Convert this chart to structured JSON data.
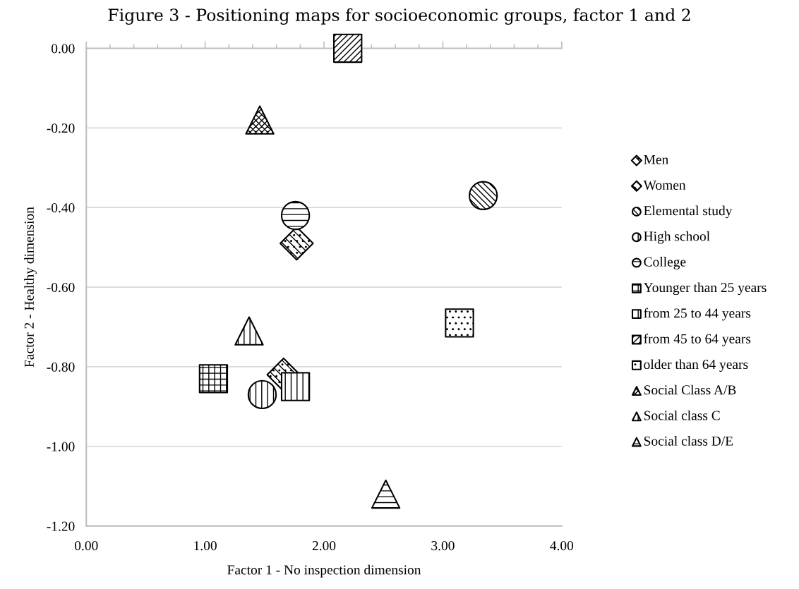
{
  "chart_data": {
    "type": "scatter",
    "title": "Figure 3 - Positioning maps for socioeconomic groups, factor 1 and 2",
    "xlabel": "Factor 1 - No inspection dimension",
    "ylabel": "Factor 2 - Healthy dimension",
    "xlim": [
      0,
      4
    ],
    "xticks": [
      {
        "value": 0,
        "label": "0.00"
      },
      {
        "value": 1,
        "label": "1.00"
      },
      {
        "value": 2,
        "label": "2.00"
      },
      {
        "value": 3,
        "label": "3.00"
      },
      {
        "value": 4,
        "label": "4.00"
      }
    ],
    "ylim": [
      -1.2,
      0
    ],
    "yticks": [
      {
        "value": -1.2,
        "label": "-1.20"
      },
      {
        "value": -1.0,
        "label": "-1.00"
      },
      {
        "value": -0.8,
        "label": "-0.80"
      },
      {
        "value": -0.6,
        "label": "-0.60"
      },
      {
        "value": -0.4,
        "label": "-0.40"
      },
      {
        "value": -0.2,
        "label": "-0.20"
      },
      {
        "value": 0,
        "label": "0.00"
      }
    ],
    "grid": "y",
    "legend": "right",
    "series": [
      {
        "name": "Men",
        "color": "#000000",
        "marker": "diamond",
        "x": [
          1.77
        ],
        "values": [
          -0.49
        ]
      },
      {
        "name": "Women",
        "color": "#000000",
        "marker": "diamond",
        "x": [
          1.66
        ],
        "values": [
          -0.82
        ]
      },
      {
        "name": "Elemental study",
        "color": "#000000",
        "marker": "circle",
        "x": [
          3.34
        ],
        "values": [
          -0.37
        ]
      },
      {
        "name": "High school",
        "color": "#000000",
        "marker": "circle",
        "x": [
          1.48
        ],
        "values": [
          -0.87
        ]
      },
      {
        "name": "College",
        "color": "#000000",
        "marker": "circle",
        "x": [
          1.76
        ],
        "values": [
          -0.42
        ]
      },
      {
        "name": "Younger than 25 years",
        "color": "#000000",
        "marker": "square",
        "x": [
          1.07
        ],
        "values": [
          -0.83
        ]
      },
      {
        "name": "from 25 to 44 years",
        "color": "#000000",
        "marker": "square",
        "x": [
          1.76
        ],
        "values": [
          -0.85
        ]
      },
      {
        "name": "from 45 to 64 years",
        "color": "#000000",
        "marker": "square",
        "x": [
          2.2
        ],
        "values": [
          0.0
        ]
      },
      {
        "name": "older than 64 years",
        "color": "#000000",
        "marker": "square",
        "x": [
          3.14
        ],
        "values": [
          -0.69
        ]
      },
      {
        "name": "Social Class A/B",
        "color": "#000000",
        "marker": "triangle",
        "x": [
          1.46
        ],
        "values": [
          -0.18
        ]
      },
      {
        "name": "Social class C",
        "color": "#000000",
        "marker": "triangle",
        "x": [
          1.37
        ],
        "values": [
          -0.71
        ]
      },
      {
        "name": "Social class D/E",
        "color": "#000000",
        "marker": "triangle",
        "x": [
          2.52
        ],
        "values": [
          -1.12
        ]
      }
    ]
  }
}
